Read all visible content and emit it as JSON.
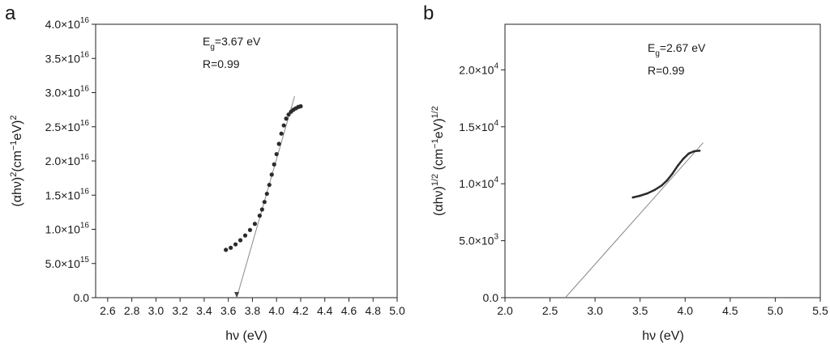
{
  "chart_data": [
    {
      "type": "scatter",
      "panel_label": "a",
      "xlabel": "hν (eV)",
      "ylabel": {
        "base": "(αhν)",
        "sup1": "2",
        "mid": "(cm",
        "sup2": "−1",
        "mid2": "eV)",
        "sup3": "2"
      },
      "xlim": [
        2.5,
        5.0
      ],
      "ylim": [
        0,
        4e+16
      ],
      "grid": false,
      "x_ticks": [
        {
          "value": 2.6,
          "label": "2.6"
        },
        {
          "value": 2.8,
          "label": "2.8"
        },
        {
          "value": 3.0,
          "label": "3.0"
        },
        {
          "value": 3.2,
          "label": "3.2"
        },
        {
          "value": 3.4,
          "label": "3.4"
        },
        {
          "value": 3.6,
          "label": "3.6"
        },
        {
          "value": 3.8,
          "label": "3.8"
        },
        {
          "value": 4.0,
          "label": "4.0"
        },
        {
          "value": 4.2,
          "label": "4.2"
        },
        {
          "value": 4.4,
          "label": "4.4"
        },
        {
          "value": 4.6,
          "label": "4.6"
        },
        {
          "value": 4.8,
          "label": "4.8"
        },
        {
          "value": 5.0,
          "label": "5.0"
        }
      ],
      "y_ticks": [
        {
          "value": 0,
          "mantissa": "0.0",
          "exp": ""
        },
        {
          "value": 5000000000000000.0,
          "mantissa": "5.0×10",
          "exp": "15"
        },
        {
          "value": 1e+16,
          "mantissa": "1.0×10",
          "exp": "16"
        },
        {
          "value": 1.5e+16,
          "mantissa": "1.5×10",
          "exp": "16"
        },
        {
          "value": 2e+16,
          "mantissa": "2.0×10",
          "exp": "16"
        },
        {
          "value": 2.5e+16,
          "mantissa": "2.5×10",
          "exp": "16"
        },
        {
          "value": 3e+16,
          "mantissa": "3.0×10",
          "exp": "16"
        },
        {
          "value": 3.5e+16,
          "mantissa": "3.5×10",
          "exp": "16"
        },
        {
          "value": 4e+16,
          "mantissa": "4.0×10",
          "exp": "16"
        }
      ],
      "data": {
        "x": [
          3.58,
          3.62,
          3.66,
          3.7,
          3.74,
          3.78,
          3.82,
          3.86,
          3.88,
          3.9,
          3.92,
          3.94,
          3.96,
          3.98,
          4.0,
          4.02,
          4.04,
          4.06,
          4.08,
          4.1,
          4.12,
          4.14,
          4.16,
          4.18,
          4.2
        ],
        "y": [
          7000000000000000.0,
          7300000000000000.0,
          7800000000000000.0,
          8400000000000000.0,
          9100000000000000.0,
          9900000000000000.0,
          1.08e+16,
          1.2e+16,
          1.29e+16,
          1.4e+16,
          1.52e+16,
          1.65e+16,
          1.8e+16,
          1.95e+16,
          2.1e+16,
          2.25e+16,
          2.4e+16,
          2.52e+16,
          2.62e+16,
          2.68e+16,
          2.72e+16,
          2.75e+16,
          2.77e+16,
          2.79e+16,
          2.8e+16
        ]
      },
      "fit_line": {
        "x": [
          3.67,
          4.15
        ],
        "y": [
          0,
          2.95e+16
        ]
      },
      "annotation": {
        "eg_prefix": "E",
        "eg_sub": "g",
        "eg_value": "=3.67 eV",
        "r_text": "R=0.99"
      },
      "color": "#2b2b2b"
    },
    {
      "type": "line",
      "panel_label": "b",
      "xlabel": "hν (eV)",
      "ylabel": {
        "base": "(αhν)",
        "sup1": "1/2",
        "mid": " (cm",
        "sup2": "−1",
        "mid2": "eV)",
        "sup3": "1/2"
      },
      "xlim": [
        2.0,
        5.5
      ],
      "ylim": [
        0,
        24000.0
      ],
      "grid": false,
      "x_ticks": [
        {
          "value": 2.0,
          "label": "2.0"
        },
        {
          "value": 2.5,
          "label": "2.5"
        },
        {
          "value": 3.0,
          "label": "3.0"
        },
        {
          "value": 3.5,
          "label": "3.5"
        },
        {
          "value": 4.0,
          "label": "4.0"
        },
        {
          "value": 4.5,
          "label": "4.5"
        },
        {
          "value": 5.0,
          "label": "5.0"
        },
        {
          "value": 5.5,
          "label": "5.5"
        }
      ],
      "y_ticks": [
        {
          "value": 0,
          "mantissa": "0.0",
          "exp": ""
        },
        {
          "value": 5000.0,
          "mantissa": "5.0×10",
          "exp": "3"
        },
        {
          "value": 10000.0,
          "mantissa": "1.0×10",
          "exp": "4"
        },
        {
          "value": 15000.0,
          "mantissa": "1.5×10",
          "exp": "4"
        },
        {
          "value": 20000.0,
          "mantissa": "2.0×10",
          "exp": "4"
        }
      ],
      "data": {
        "x": [
          3.42,
          3.5,
          3.58,
          3.66,
          3.74,
          3.8,
          3.86,
          3.92,
          3.98,
          4.04,
          4.1,
          4.16
        ],
        "y": [
          8800,
          8950,
          9150,
          9450,
          9850,
          10300,
          10900,
          11600,
          12200,
          12650,
          12850,
          12900
        ]
      },
      "fit_line": {
        "x": [
          2.67,
          4.2
        ],
        "y": [
          0,
          13600
        ]
      },
      "annotation": {
        "eg_prefix": "E",
        "eg_sub": "g",
        "eg_value": "=2.67 eV",
        "r_text": "R=0.99"
      },
      "color": "#2b2b2b"
    }
  ]
}
